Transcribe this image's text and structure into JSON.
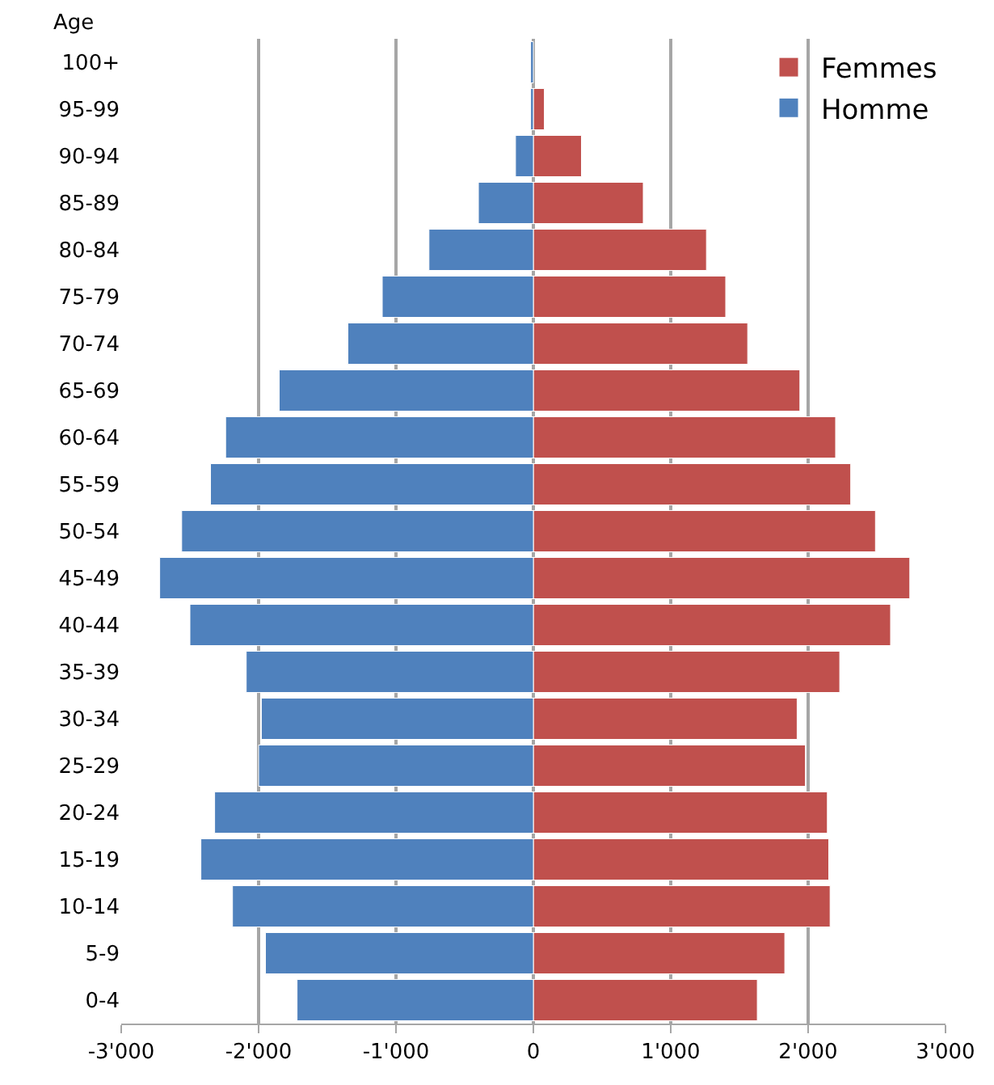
{
  "chart_data": {
    "type": "bar",
    "orientation": "horizontal",
    "stacked": true,
    "ylabel": "Age",
    "categories": [
      "100+",
      "95-99",
      "90-94",
      "85-89",
      "80-84",
      "75-79",
      "70-74",
      "65-69",
      "60-64",
      "55-59",
      "50-54",
      "45-49",
      "40-44",
      "35-39",
      "30-34",
      "25-29",
      "20-24",
      "15-19",
      "10-14",
      "5-9",
      "0-4"
    ],
    "series": [
      {
        "name": "Femmes",
        "color": "#c0504d",
        "values": [
          null,
          80,
          350,
          800,
          1260,
          1400,
          1560,
          1940,
          2200,
          2310,
          2490,
          2740,
          2600,
          2230,
          1920,
          1980,
          2140,
          2150,
          2160,
          1830,
          1630
        ]
      },
      {
        "name": "Homme",
        "color": "#4f81bd",
        "values": [
          -20,
          -20,
          -130,
          -400,
          -760,
          -1100,
          -1350,
          -1850,
          -2240,
          -2350,
          -2560,
          -2720,
          -2500,
          -2090,
          -1980,
          -2000,
          -2320,
          -2420,
          -2190,
          -1950,
          -1720
        ]
      }
    ],
    "xlim": [
      -3000,
      3000
    ],
    "xticks": [
      {
        "value": -3000,
        "label": "-3'000"
      },
      {
        "value": -2000,
        "label": "-2'000"
      },
      {
        "value": -1000,
        "label": "-1'000"
      },
      0,
      {
        "value": 1000,
        "label": "1'000"
      },
      {
        "value": 2000,
        "label": "2'000"
      },
      {
        "value": 3000,
        "label": "3'000"
      }
    ],
    "grid": "x",
    "legend": "top right"
  }
}
